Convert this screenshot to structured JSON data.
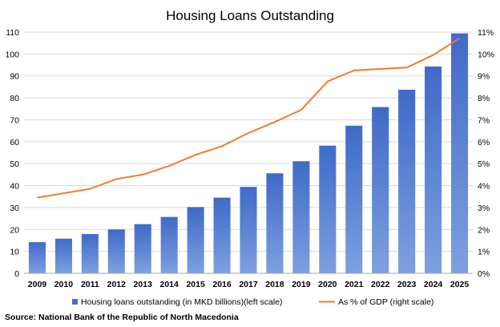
{
  "chart_data": {
    "type": "bar",
    "title": "Housing Loans Outstanding",
    "categories": [
      "2009",
      "2010",
      "2011",
      "2012",
      "2013",
      "2014",
      "2015",
      "2016",
      "2017",
      "2018",
      "2019",
      "2020",
      "2021",
      "2022",
      "2023",
      "2024",
      "2025"
    ],
    "series": [
      {
        "name": "Housing loans outstanding (in MKD billions)(left scale)",
        "type": "bar",
        "axis": "left",
        "color": "#4472C4",
        "values": [
          14.2,
          15.8,
          17.9,
          20.0,
          22.4,
          25.7,
          30.2,
          34.5,
          39.4,
          45.6,
          51.1,
          58.2,
          67.3,
          75.8,
          83.7,
          94.3,
          109.4
        ]
      },
      {
        "name": "As % of GDP (right scale)",
        "type": "line",
        "axis": "right",
        "color": "#ED7D31",
        "values": [
          3.45,
          3.65,
          3.85,
          4.3,
          4.5,
          4.9,
          5.4,
          5.8,
          6.4,
          6.9,
          7.45,
          8.75,
          9.25,
          9.32,
          9.38,
          9.95,
          10.72
        ]
      }
    ],
    "y_left": {
      "lim": [
        0,
        110
      ],
      "ticks": [
        "0",
        "10",
        "20",
        "30",
        "40",
        "50",
        "60",
        "70",
        "80",
        "90",
        "100",
        "110"
      ]
    },
    "y_right": {
      "lim": [
        0,
        11
      ],
      "ticks": [
        "0%",
        "1%",
        "2%",
        "3%",
        "4%",
        "5%",
        "6%",
        "7%",
        "8%",
        "9%",
        "10%",
        "11%"
      ]
    },
    "grid": true,
    "legend": "bottom"
  },
  "source": "Source: National Bank of the Republic of North Macedonia"
}
